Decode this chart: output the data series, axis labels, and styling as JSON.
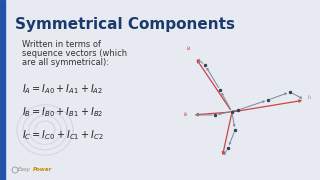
{
  "title": "Symmetrical Components",
  "title_color": "#1a3a6b",
  "title_fontsize": 11,
  "bg_color": "#e8eaf2",
  "subtitle_lines": [
    "Written in terms of",
    "sequence vectors (which",
    "are all symmetrical):"
  ],
  "subtitle_fontsize": 6.0,
  "subtitle_color": "#333333",
  "equations": [
    "$I_A = I_{A0} + I_{A1} + I_{A2}$",
    "$I_B = I_{B0} + I_{B1} + I_{B2}$",
    "$I_C = I_{C0} + I_{C1} + I_{C2}$"
  ],
  "eq_fontsize": 7.0,
  "eq_color": "#222222",
  "watermark_color": "#d0d3e8",
  "left_bar_color": "#2255aa",
  "logo_easy_color": "#888888",
  "logo_power_color": "#cc8800",
  "logo_fontsize": 4.0,
  "dark_vec_color": "#778899",
  "red_vec_color": "#cc4444",
  "dot_color": "#334455"
}
